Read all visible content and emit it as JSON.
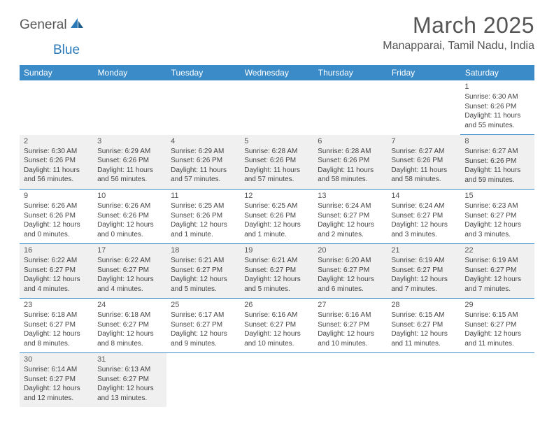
{
  "logo": {
    "text1": "General",
    "text2": "Blue"
  },
  "header": {
    "title": "March 2025",
    "location": "Manapparai, Tamil Nadu, India"
  },
  "dayHeaders": [
    "Sunday",
    "Monday",
    "Tuesday",
    "Wednesday",
    "Thursday",
    "Friday",
    "Saturday"
  ],
  "colors": {
    "header_bg": "#3b8bc8",
    "header_text": "#ffffff",
    "row_alt_bg": "#f0f0f0",
    "border": "#3b8bc8",
    "logo_blue": "#2b7bba",
    "text": "#444444"
  },
  "weeks": [
    [
      null,
      null,
      null,
      null,
      null,
      null,
      {
        "n": "1",
        "sunrise": "Sunrise: 6:30 AM",
        "sunset": "Sunset: 6:26 PM",
        "daylight": "Daylight: 11 hours and 55 minutes."
      }
    ],
    [
      {
        "n": "2",
        "sunrise": "Sunrise: 6:30 AM",
        "sunset": "Sunset: 6:26 PM",
        "daylight": "Daylight: 11 hours and 56 minutes."
      },
      {
        "n": "3",
        "sunrise": "Sunrise: 6:29 AM",
        "sunset": "Sunset: 6:26 PM",
        "daylight": "Daylight: 11 hours and 56 minutes."
      },
      {
        "n": "4",
        "sunrise": "Sunrise: 6:29 AM",
        "sunset": "Sunset: 6:26 PM",
        "daylight": "Daylight: 11 hours and 57 minutes."
      },
      {
        "n": "5",
        "sunrise": "Sunrise: 6:28 AM",
        "sunset": "Sunset: 6:26 PM",
        "daylight": "Daylight: 11 hours and 57 minutes."
      },
      {
        "n": "6",
        "sunrise": "Sunrise: 6:28 AM",
        "sunset": "Sunset: 6:26 PM",
        "daylight": "Daylight: 11 hours and 58 minutes."
      },
      {
        "n": "7",
        "sunrise": "Sunrise: 6:27 AM",
        "sunset": "Sunset: 6:26 PM",
        "daylight": "Daylight: 11 hours and 58 minutes."
      },
      {
        "n": "8",
        "sunrise": "Sunrise: 6:27 AM",
        "sunset": "Sunset: 6:26 PM",
        "daylight": "Daylight: 11 hours and 59 minutes."
      }
    ],
    [
      {
        "n": "9",
        "sunrise": "Sunrise: 6:26 AM",
        "sunset": "Sunset: 6:26 PM",
        "daylight": "Daylight: 12 hours and 0 minutes."
      },
      {
        "n": "10",
        "sunrise": "Sunrise: 6:26 AM",
        "sunset": "Sunset: 6:26 PM",
        "daylight": "Daylight: 12 hours and 0 minutes."
      },
      {
        "n": "11",
        "sunrise": "Sunrise: 6:25 AM",
        "sunset": "Sunset: 6:26 PM",
        "daylight": "Daylight: 12 hours and 1 minute."
      },
      {
        "n": "12",
        "sunrise": "Sunrise: 6:25 AM",
        "sunset": "Sunset: 6:26 PM",
        "daylight": "Daylight: 12 hours and 1 minute."
      },
      {
        "n": "13",
        "sunrise": "Sunrise: 6:24 AM",
        "sunset": "Sunset: 6:27 PM",
        "daylight": "Daylight: 12 hours and 2 minutes."
      },
      {
        "n": "14",
        "sunrise": "Sunrise: 6:24 AM",
        "sunset": "Sunset: 6:27 PM",
        "daylight": "Daylight: 12 hours and 3 minutes."
      },
      {
        "n": "15",
        "sunrise": "Sunrise: 6:23 AM",
        "sunset": "Sunset: 6:27 PM",
        "daylight": "Daylight: 12 hours and 3 minutes."
      }
    ],
    [
      {
        "n": "16",
        "sunrise": "Sunrise: 6:22 AM",
        "sunset": "Sunset: 6:27 PM",
        "daylight": "Daylight: 12 hours and 4 minutes."
      },
      {
        "n": "17",
        "sunrise": "Sunrise: 6:22 AM",
        "sunset": "Sunset: 6:27 PM",
        "daylight": "Daylight: 12 hours and 4 minutes."
      },
      {
        "n": "18",
        "sunrise": "Sunrise: 6:21 AM",
        "sunset": "Sunset: 6:27 PM",
        "daylight": "Daylight: 12 hours and 5 minutes."
      },
      {
        "n": "19",
        "sunrise": "Sunrise: 6:21 AM",
        "sunset": "Sunset: 6:27 PM",
        "daylight": "Daylight: 12 hours and 5 minutes."
      },
      {
        "n": "20",
        "sunrise": "Sunrise: 6:20 AM",
        "sunset": "Sunset: 6:27 PM",
        "daylight": "Daylight: 12 hours and 6 minutes."
      },
      {
        "n": "21",
        "sunrise": "Sunrise: 6:19 AM",
        "sunset": "Sunset: 6:27 PM",
        "daylight": "Daylight: 12 hours and 7 minutes."
      },
      {
        "n": "22",
        "sunrise": "Sunrise: 6:19 AM",
        "sunset": "Sunset: 6:27 PM",
        "daylight": "Daylight: 12 hours and 7 minutes."
      }
    ],
    [
      {
        "n": "23",
        "sunrise": "Sunrise: 6:18 AM",
        "sunset": "Sunset: 6:27 PM",
        "daylight": "Daylight: 12 hours and 8 minutes."
      },
      {
        "n": "24",
        "sunrise": "Sunrise: 6:18 AM",
        "sunset": "Sunset: 6:27 PM",
        "daylight": "Daylight: 12 hours and 8 minutes."
      },
      {
        "n": "25",
        "sunrise": "Sunrise: 6:17 AM",
        "sunset": "Sunset: 6:27 PM",
        "daylight": "Daylight: 12 hours and 9 minutes."
      },
      {
        "n": "26",
        "sunrise": "Sunrise: 6:16 AM",
        "sunset": "Sunset: 6:27 PM",
        "daylight": "Daylight: 12 hours and 10 minutes."
      },
      {
        "n": "27",
        "sunrise": "Sunrise: 6:16 AM",
        "sunset": "Sunset: 6:27 PM",
        "daylight": "Daylight: 12 hours and 10 minutes."
      },
      {
        "n": "28",
        "sunrise": "Sunrise: 6:15 AM",
        "sunset": "Sunset: 6:27 PM",
        "daylight": "Daylight: 12 hours and 11 minutes."
      },
      {
        "n": "29",
        "sunrise": "Sunrise: 6:15 AM",
        "sunset": "Sunset: 6:27 PM",
        "daylight": "Daylight: 12 hours and 11 minutes."
      }
    ],
    [
      {
        "n": "30",
        "sunrise": "Sunrise: 6:14 AM",
        "sunset": "Sunset: 6:27 PM",
        "daylight": "Daylight: 12 hours and 12 minutes."
      },
      {
        "n": "31",
        "sunrise": "Sunrise: 6:13 AM",
        "sunset": "Sunset: 6:27 PM",
        "daylight": "Daylight: 12 hours and 13 minutes."
      },
      null,
      null,
      null,
      null,
      null
    ]
  ]
}
